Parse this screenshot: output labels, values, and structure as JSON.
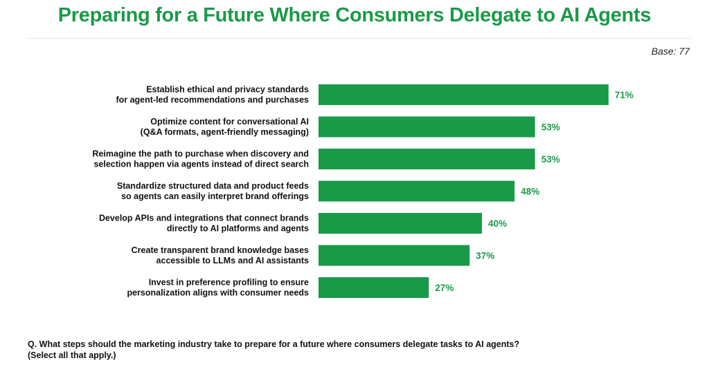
{
  "header": {
    "title": "Preparing for a Future Where Consumers Delegate to AI Agents",
    "base_note": "Base: 77"
  },
  "footnote": {
    "question": "Q. What steps should the marketing industry take to prepare for a future where consumers delegate tasks to AI agents?",
    "instruction": "(Select all that apply.)"
  },
  "colors": {
    "bar": "#1a9a48",
    "value_label": "#1a9a48",
    "title": "#1a9a48"
  },
  "chart_data": {
    "type": "bar",
    "orientation": "horizontal",
    "title": "",
    "xlabel": "",
    "ylabel": "",
    "grid": false,
    "legend": "none",
    "xlim": [
      0,
      100
    ],
    "categories": [
      [
        "Establish ethical and privacy standards",
        "for agent-led recommendations and purchases"
      ],
      [
        "Optimize content for conversational AI",
        "(Q&A formats, agent-friendly messaging)"
      ],
      [
        "Reimagine the path to purchase when discovery and",
        "selection happen via agents instead of direct search"
      ],
      [
        "Standardize structured data and product feeds",
        "so agents can easily interpret brand offerings"
      ],
      [
        "Develop APIs and integrations that connect brands",
        "directly to AI platforms and agents"
      ],
      [
        "Create transparent brand knowledge bases",
        "accessible to LLMs and AI assistants"
      ],
      [
        "Invest in preference profiling to ensure",
        "personalization aligns with consumer needs"
      ]
    ],
    "values": [
      71,
      53,
      53,
      48,
      40,
      37,
      27
    ],
    "value_labels": [
      "71%",
      "53%",
      "53%",
      "48%",
      "40%",
      "37%",
      "27%"
    ]
  }
}
